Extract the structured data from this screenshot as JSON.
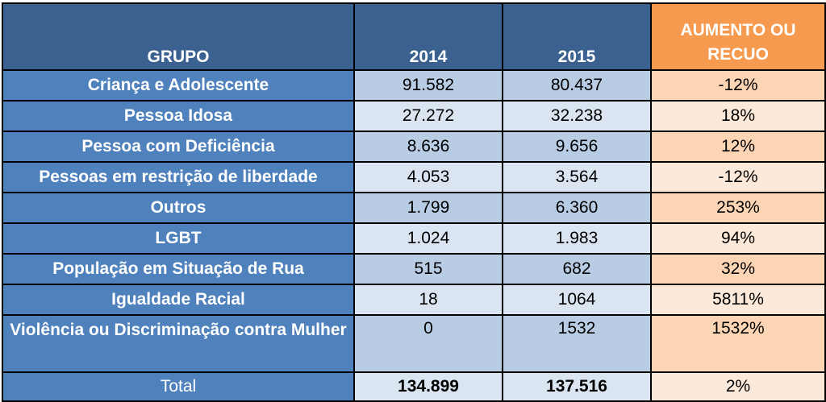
{
  "headers": {
    "group": "GRUPO",
    "y2014": "2014",
    "y2015": "2015",
    "change_line1": "AUMENTO OU",
    "change_line2": "RECUO"
  },
  "rows": [
    {
      "group": "Criança e Adolescente",
      "y2014": "91.582",
      "y2015": "80.437",
      "change": "-12%"
    },
    {
      "group": "Pessoa Idosa",
      "y2014": "27.272",
      "y2015": "32.238",
      "change": "18%"
    },
    {
      "group": "Pessoa com Deficiência",
      "y2014": "8.636",
      "y2015": "9.656",
      "change": "12%"
    },
    {
      "group": "Pessoas em restrição de liberdade",
      "y2014": "4.053",
      "y2015": "3.564",
      "change": "-12%"
    },
    {
      "group": "Outros",
      "y2014": "1.799",
      "y2015": "6.360",
      "change": "253%"
    },
    {
      "group": "LGBT",
      "y2014": "1.024",
      "y2015": "1.983",
      "change": "94%"
    },
    {
      "group": "População em Situação de Rua",
      "y2014": "515",
      "y2015": "682",
      "change": "32%"
    },
    {
      "group": "Igualdade Racial",
      "y2014": "18",
      "y2015": "1064",
      "change": "5811%"
    },
    {
      "group": "Violência ou Discriminação contra Mulher",
      "y2014": "0",
      "y2015": "1532",
      "change": "1532%"
    }
  ],
  "total": {
    "label": "Total",
    "y2014": "134.899",
    "y2015": "137.516",
    "change": "2%"
  },
  "colors": {
    "header_blue": "#3a6190",
    "group_blue": "#4f81bd",
    "header_orange": "#f59a4e",
    "cell_blue": "#b8cce4",
    "cell_blue_light": "#dbe5f1",
    "cell_orange": "#fcd5b4",
    "cell_orange_light": "#fde9d9"
  }
}
